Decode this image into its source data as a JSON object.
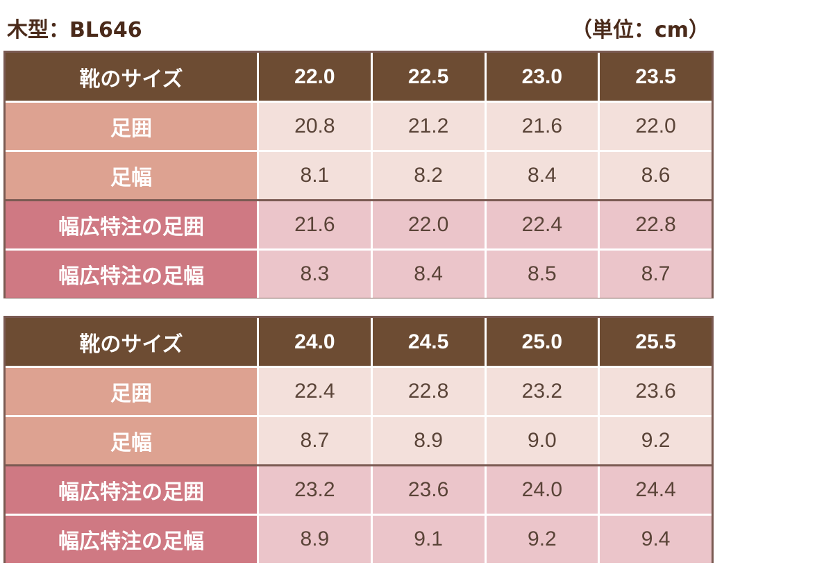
{
  "title": "木型：BL646",
  "unit_note": "（単位：cm）",
  "colors": {
    "header_bg": "#6d4c33",
    "standard_label_bg": "#dda291",
    "standard_value_bg": "#f3e0db",
    "wide_label_bg": "#cf7983",
    "wide_value_bg": "#ebc5ca",
    "border": "#7a5a52",
    "text_dark": "#4a2a1a"
  },
  "tables": [
    {
      "header_label": "靴のサイズ",
      "sizes": [
        "22.0",
        "22.5",
        "23.0",
        "23.5"
      ],
      "rows": [
        {
          "label": "足囲",
          "group": "standard",
          "values": [
            "20.8",
            "21.2",
            "21.6",
            "22.0"
          ]
        },
        {
          "label": "足幅",
          "group": "standard",
          "values": [
            "8.1",
            "8.2",
            "8.4",
            "8.6"
          ]
        },
        {
          "label": "幅広特注の足囲",
          "group": "wide",
          "values": [
            "21.6",
            "22.0",
            "22.4",
            "22.8"
          ]
        },
        {
          "label": "幅広特注の足幅",
          "group": "wide",
          "values": [
            "8.3",
            "8.4",
            "8.5",
            "8.7"
          ]
        }
      ]
    },
    {
      "header_label": "靴のサイズ",
      "sizes": [
        "24.0",
        "24.5",
        "25.0",
        "25.5"
      ],
      "rows": [
        {
          "label": "足囲",
          "group": "standard",
          "values": [
            "22.4",
            "22.8",
            "23.2",
            "23.6"
          ]
        },
        {
          "label": "足幅",
          "group": "standard",
          "values": [
            "8.7",
            "8.9",
            "9.0",
            "9.2"
          ]
        },
        {
          "label": "幅広特注の足囲",
          "group": "wide",
          "values": [
            "23.2",
            "23.6",
            "24.0",
            "24.4"
          ]
        },
        {
          "label": "幅広特注の足幅",
          "group": "wide",
          "values": [
            "8.9",
            "9.1",
            "9.2",
            "9.4"
          ]
        }
      ]
    }
  ]
}
